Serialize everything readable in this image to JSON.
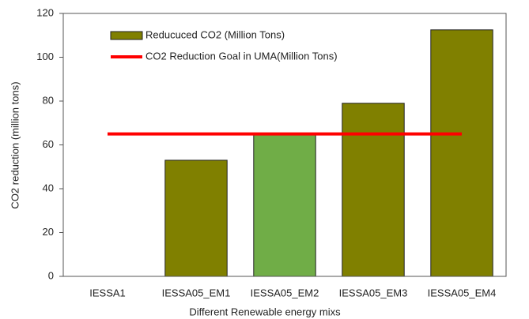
{
  "chart_data": {
    "type": "bar",
    "xlabel": "Different Renewable energy mixs",
    "ylabel": "CO2 reduction (million tons)",
    "categories": [
      "IESSA1",
      "IESSA05_EM1",
      "IESSA05_EM2",
      "IESSA05_EM3",
      "IESSA05_EM4"
    ],
    "series": [
      {
        "name": "Reducuced CO2 (Million Tons)",
        "type": "bar",
        "color": "#808000",
        "colors": [
          "#808000",
          "#808000",
          "#70ad47",
          "#808000",
          "#808000"
        ],
        "values": [
          0,
          53,
          65,
          79,
          112.5
        ]
      },
      {
        "name": "CO2 Reduction Goal in UMA(Million Tons)",
        "type": "line",
        "color": "#ff0000",
        "values": [
          65,
          65,
          65,
          65,
          65
        ]
      }
    ],
    "ylim": [
      0,
      120
    ],
    "yticks": [
      0,
      20,
      40,
      60,
      80,
      100,
      120
    ],
    "legend": "upper left"
  }
}
